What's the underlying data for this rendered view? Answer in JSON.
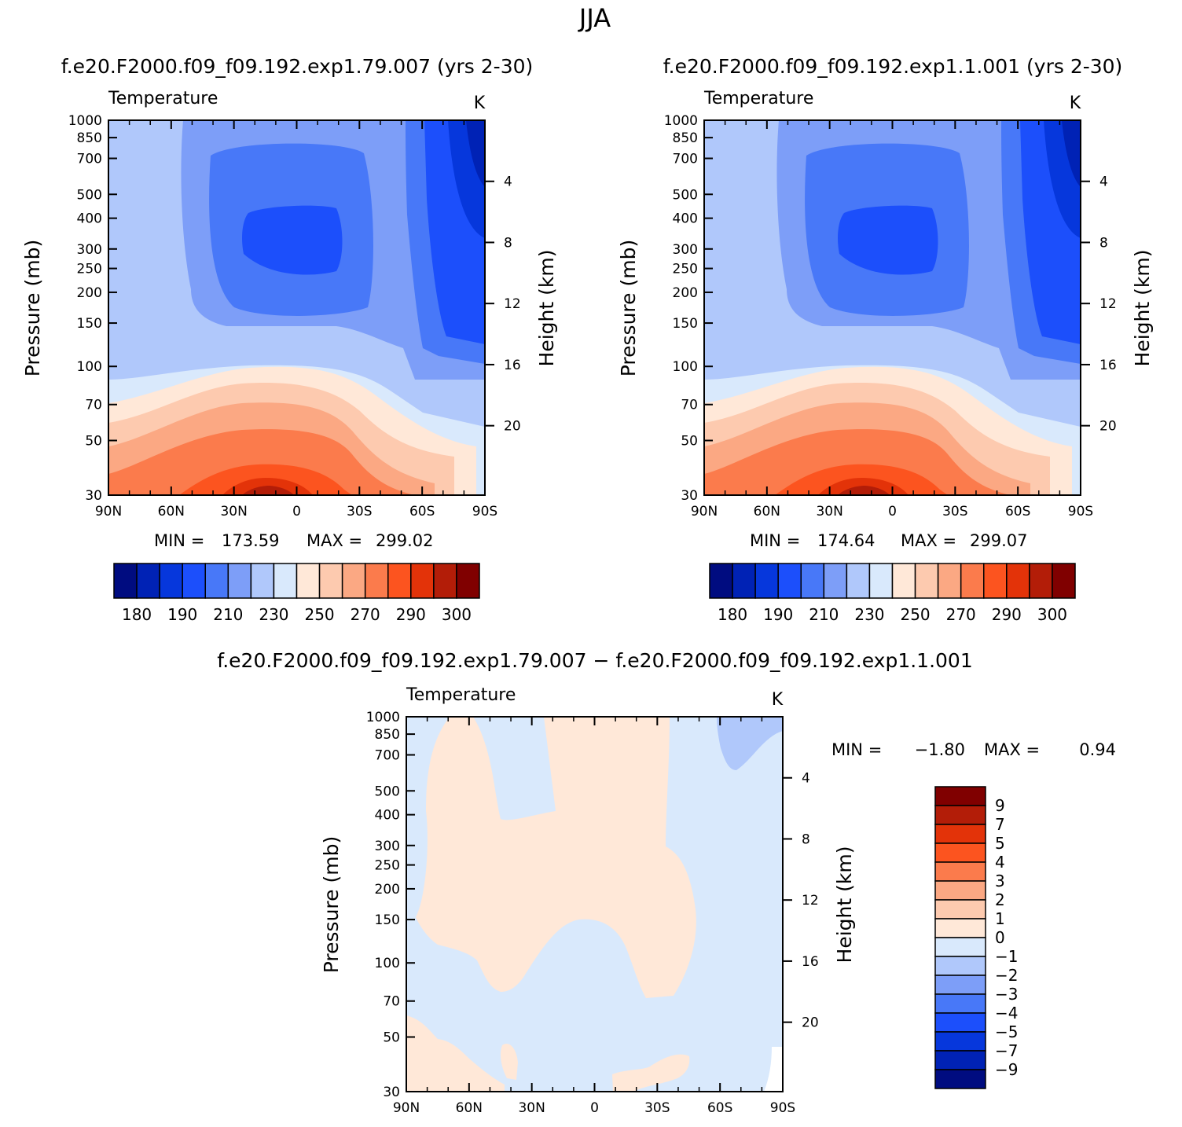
{
  "figure": {
    "season_title": "JJA"
  },
  "colors": {
    "abs_levels": [
      "#000c80",
      "#0022b5",
      "#0637dc",
      "#1c4ffb",
      "#4878f8",
      "#7d9ef8",
      "#b0c8fb",
      "#d9e9fc",
      "#ffe8d8",
      "#fdcaaf",
      "#fba883",
      "#fb7b4c",
      "#fc541f",
      "#e33309",
      "#b31d08",
      "#800000"
    ],
    "diff_levels": [
      "#000c80",
      "#0022b5",
      "#0637dc",
      "#1c4ffb",
      "#4878f8",
      "#7d9ef8",
      "#b0c8fb",
      "#d9e9fc",
      "#ffe8d8",
      "#fdcaaf",
      "#fba883",
      "#fb7b4c",
      "#fc541f",
      "#e33309",
      "#b31d08",
      "#800000"
    ]
  },
  "chart_data": [
    {
      "type": "heatmap",
      "panel": "top-left",
      "case_title": "f.e20.F2000.f09_f09.192.exp1.79.007 (yrs 2-30)",
      "variable": "Temperature",
      "units": "K",
      "xlabel": "",
      "ylabel": "Pressure (mb)",
      "y2label": "Height (km)",
      "x_ticks": [
        "90N",
        "60N",
        "30N",
        "0",
        "30S",
        "60S",
        "90S"
      ],
      "pressure_ticks": [
        "30",
        "50",
        "70",
        "100",
        "150",
        "200",
        "250",
        "300",
        "400",
        "500",
        "700",
        "850",
        "1000"
      ],
      "height_ticks": [
        "20",
        "16",
        "12",
        "8",
        "4"
      ],
      "ylim_mb": [
        1000,
        30
      ],
      "min_label": "MIN =",
      "min_value": "173.59",
      "max_label": "MAX =",
      "max_value": "299.02",
      "colorbar_labels": [
        "180",
        "190",
        "210",
        "230",
        "250",
        "270",
        "290",
        "300"
      ],
      "colorbar_levels": [
        180,
        185,
        190,
        200,
        210,
        220,
        230,
        240,
        250,
        260,
        270,
        280,
        290,
        295,
        300
      ]
    },
    {
      "type": "heatmap",
      "panel": "top-right",
      "case_title": "f.e20.F2000.f09_f09.192.exp1.1.001 (yrs 2-30)",
      "variable": "Temperature",
      "units": "K",
      "xlabel": "",
      "ylabel": "Pressure (mb)",
      "y2label": "Height (km)",
      "x_ticks": [
        "90N",
        "60N",
        "30N",
        "0",
        "30S",
        "60S",
        "90S"
      ],
      "pressure_ticks": [
        "30",
        "50",
        "70",
        "100",
        "150",
        "200",
        "250",
        "300",
        "400",
        "500",
        "700",
        "850",
        "1000"
      ],
      "height_ticks": [
        "20",
        "16",
        "12",
        "8",
        "4"
      ],
      "ylim_mb": [
        1000,
        30
      ],
      "min_label": "MIN =",
      "min_value": "174.64",
      "max_label": "MAX =",
      "max_value": "299.07",
      "colorbar_labels": [
        "180",
        "190",
        "210",
        "230",
        "250",
        "270",
        "290",
        "300"
      ],
      "colorbar_levels": [
        180,
        185,
        190,
        200,
        210,
        220,
        230,
        240,
        250,
        260,
        270,
        280,
        290,
        295,
        300
      ]
    },
    {
      "type": "heatmap",
      "panel": "bottom-difference",
      "case_title": "f.e20.F2000.f09_f09.192.exp1.79.007 − f.e20.F2000.f09_f09.192.exp1.1.001",
      "variable": "Temperature",
      "units": "K",
      "xlabel": "",
      "ylabel": "Pressure (mb)",
      "y2label": "Height (km)",
      "x_ticks": [
        "90N",
        "60N",
        "30N",
        "0",
        "30S",
        "60S",
        "90S"
      ],
      "pressure_ticks": [
        "30",
        "50",
        "70",
        "100",
        "150",
        "200",
        "250",
        "300",
        "400",
        "500",
        "700",
        "850",
        "1000"
      ],
      "height_ticks": [
        "20",
        "16",
        "12",
        "8",
        "4"
      ],
      "ylim_mb": [
        1000,
        30
      ],
      "min_label": "MIN =",
      "min_value": "−1.80",
      "max_label": "MAX =",
      "max_value": "0.94",
      "colorbar_labels": [
        "9",
        "7",
        "5",
        "4",
        "3",
        "2",
        "1",
        "0",
        "−1",
        "−2",
        "−3",
        "−4",
        "−5",
        "−7",
        "−9"
      ],
      "colorbar_levels": [
        -9,
        -7,
        -5,
        -4,
        -3,
        -2,
        -1,
        0,
        1,
        2,
        3,
        4,
        5,
        7,
        9
      ]
    }
  ]
}
